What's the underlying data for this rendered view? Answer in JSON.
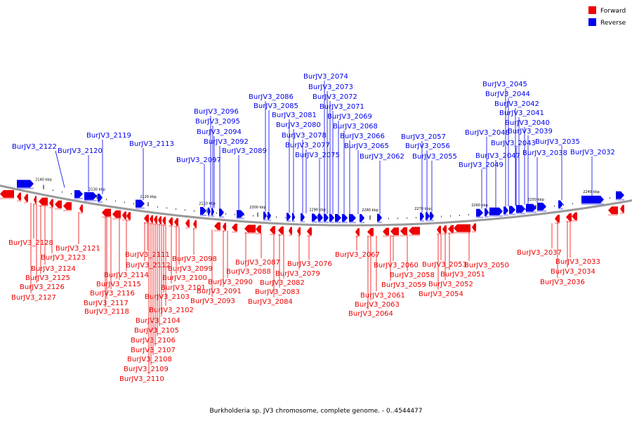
{
  "legend": [
    {
      "label": "Forward",
      "color": "#ee0000"
    },
    {
      "label": "Reverse",
      "color": "#0000ee"
    }
  ],
  "caption": "Burkholderia sp. JV3 chromosome, complete genome. - 0..4544477",
  "axis_ticks": [
    "2140 kbp",
    "2130 kbp",
    "2120 kbp",
    "2110 kbp",
    "2300 kbp",
    "2290 kbp",
    "2280 kbp",
    "2270 kbp",
    "2260 kbp",
    "2250 kbp",
    "2240 kbp"
  ],
  "reverse_labels": [
    "BurJV3_2122",
    "BurJV3_2120",
    "BurJV3_2119",
    "BurJV3_2113",
    "BurJV3_2097",
    "BurJV3_2096",
    "BurJV3_2095",
    "BurJV3_2094",
    "BurJV3_2092",
    "BurJV3_2089",
    "BurJV3_2086",
    "BurJV3_2085",
    "BurJV3_2081",
    "BurJV3_2080",
    "BurJV3_2078",
    "BurJV3_2077",
    "BurJV3_2075",
    "BurJV3_2074",
    "BurJV3_2073",
    "BurJV3_2072",
    "BurJV3_2071",
    "BurJV3_2069",
    "BurJV3_2068",
    "BurJV3_2066",
    "BurJV3_2065",
    "BurJV3_2062",
    "BurJV3_2057",
    "BurJV3_2056",
    "BurJV3_2055",
    "BurJV3_2049",
    "BurJV3_2048",
    "BurJV3_2047",
    "BurJV3_2045",
    "BurJV3_2044",
    "BurJV3_2043",
    "BurJV3_2042",
    "BurJV3_2041",
    "BurJV3_2040",
    "BurJV3_2039",
    "BurJV3_2038",
    "BurJV3_2035",
    "BurJV3_2032"
  ],
  "forward_labels": [
    "BurJV3_2128",
    "BurJV3_2127",
    "BurJV3_2126",
    "BurJV3_2125",
    "BurJV3_2124",
    "BurJV3_2123",
    "BurJV3_2121",
    "BurJV3_2118",
    "BurJV3_2117",
    "BurJV3_2116",
    "BurJV3_2115",
    "BurJV3_2114",
    "BurJV3_2112",
    "BurJV3_2111",
    "BurJV3_2110",
    "BurJV3_2109",
    "BurJV3_2108",
    "BurJV3_2107",
    "BurJV3_2106",
    "BurJV3_2105",
    "BurJV3_2104",
    "BurJV3_2103",
    "BurJV3_2102",
    "BurJV3_2101",
    "BurJV3_2100",
    "BurJV3_2099",
    "BurJV3_2098",
    "BurJV3_2093",
    "BurJV3_2091",
    "BurJV3_2090",
    "BurJV3_2088",
    "BurJV3_2087",
    "BurJV3_2084",
    "BurJV3_2083",
    "BurJV3_2082",
    "BurJV3_2079",
    "BurJV3_2076",
    "BurJV3_2067",
    "BurJV3_2064",
    "BurJV3_2063",
    "BurJV3_2061",
    "BurJV3_2060",
    "BurJV3_2059",
    "BurJV3_2058",
    "BurJV3_2054",
    "BurJV3_2053",
    "BurJV3_2052",
    "BurJV3_2051",
    "BurJV3_2050",
    "BurJV3_2037",
    "BurJV3_2036",
    "BurJV3_2034",
    "BurJV3_2033"
  ]
}
